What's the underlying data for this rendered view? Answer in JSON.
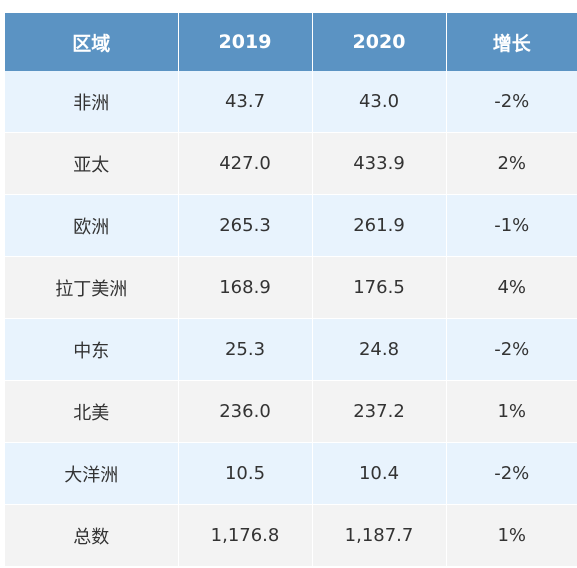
{
  "table": {
    "headers": [
      "区域",
      "2019",
      "2020",
      "增长"
    ],
    "rows": [
      [
        "非洲",
        "43.7",
        "43.0",
        "-2%"
      ],
      [
        "亚太",
        "427.0",
        "433.9",
        "2%"
      ],
      [
        "欧洲",
        "265.3",
        "261.9",
        "-1%"
      ],
      [
        "拉丁美洲",
        "168.9",
        "176.5",
        "4%"
      ],
      [
        "中东",
        "25.3",
        "24.8",
        "-2%"
      ],
      [
        "北美",
        "236.0",
        "237.2",
        "1%"
      ],
      [
        "大洋洲",
        "10.5",
        "10.4",
        "-2%"
      ],
      [
        "总数",
        "1,176.8",
        "1,187.7",
        "1%"
      ]
    ]
  },
  "colors": {
    "header_bg": "#5b93c3",
    "row_alt_blue": "#e8f3fd",
    "row_alt_gray": "#f3f3f3"
  }
}
